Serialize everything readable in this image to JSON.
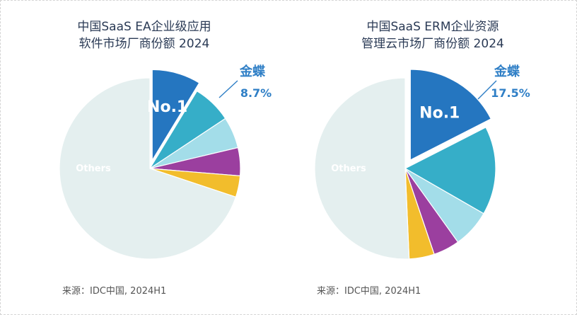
{
  "chart_data": [
    {
      "type": "pie",
      "title_lines": [
        "中国SaaS EA企业级应用",
        "软件市场厂商份额 2024"
      ],
      "source": "来源：IDC中国, 2024H1",
      "rank_label": "No.1",
      "vendor_label": "金蝶",
      "percent_label": "8.7%",
      "others_label": "Others",
      "slices": [
        {
          "name": "金蝶",
          "value": 8.7,
          "color": "#2576c0",
          "explode": true
        },
        {
          "value": 7.0,
          "color": "#36aec8"
        },
        {
          "value": 5.6,
          "color": "#a3dde9"
        },
        {
          "value": 5.0,
          "color": "#9b3f9f"
        },
        {
          "value": 3.8,
          "color": "#f2bd2c"
        },
        {
          "name": "Others",
          "value": 69.9,
          "color": "#e4efef"
        }
      ]
    },
    {
      "type": "pie",
      "title_lines": [
        "中国SaaS ERM企业资源",
        "管理云市场厂商份额 2024"
      ],
      "source": "来源：IDC中国, 2024H1",
      "rank_label": "No.1",
      "vendor_label": "金蝶",
      "percent_label": "17.5%",
      "others_label": "Others",
      "slices": [
        {
          "name": "金蝶",
          "value": 17.5,
          "color": "#2576c0",
          "explode": true
        },
        {
          "value": 15.8,
          "color": "#36aec8"
        },
        {
          "value": 6.8,
          "color": "#a3dde9"
        },
        {
          "value": 4.7,
          "color": "#9b3f9f"
        },
        {
          "value": 4.5,
          "color": "#f2bd2c"
        },
        {
          "name": "Others",
          "value": 50.7,
          "color": "#e4efef"
        }
      ]
    }
  ]
}
